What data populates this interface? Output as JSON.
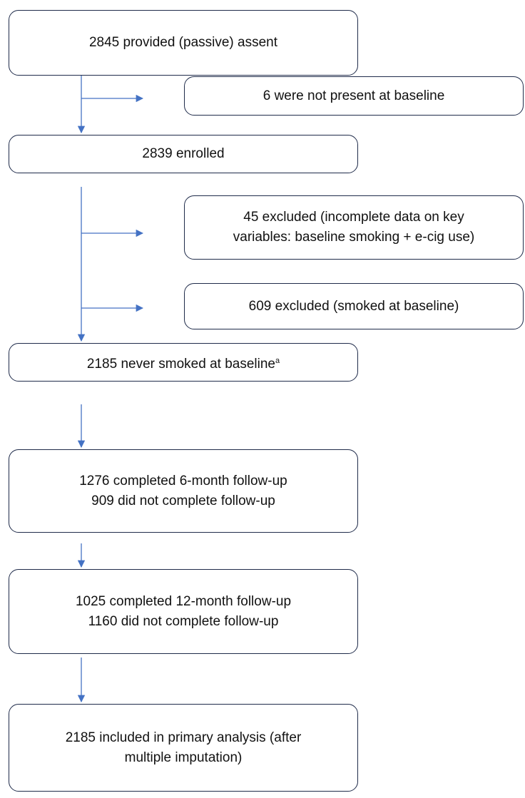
{
  "nodes": [
    {
      "lines": [
        "2845 provided (passive) assent"
      ]
    },
    {
      "lines": [
        "6 were not present at baseline"
      ]
    },
    {
      "lines": [
        "2839 enrolled"
      ]
    },
    {
      "lines": [
        "45 excluded (incomplete data on key",
        "variables: baseline smoking + e-cig use)"
      ]
    },
    {
      "lines": [
        "609 excluded (smoked at baseline)"
      ]
    },
    {
      "lines": [
        "2185 never smoked at baseline"
      ],
      "superscript": "a"
    },
    {
      "lines": [
        "1276 completed 6-month follow-up",
        "909 did not complete follow-up"
      ]
    },
    {
      "lines": [
        "1025 completed 12-month follow-up",
        "1160 did not complete follow-up"
      ]
    },
    {
      "lines": [
        "2185 included in primary analysis (after",
        "multiple imputation)"
      ]
    }
  ]
}
